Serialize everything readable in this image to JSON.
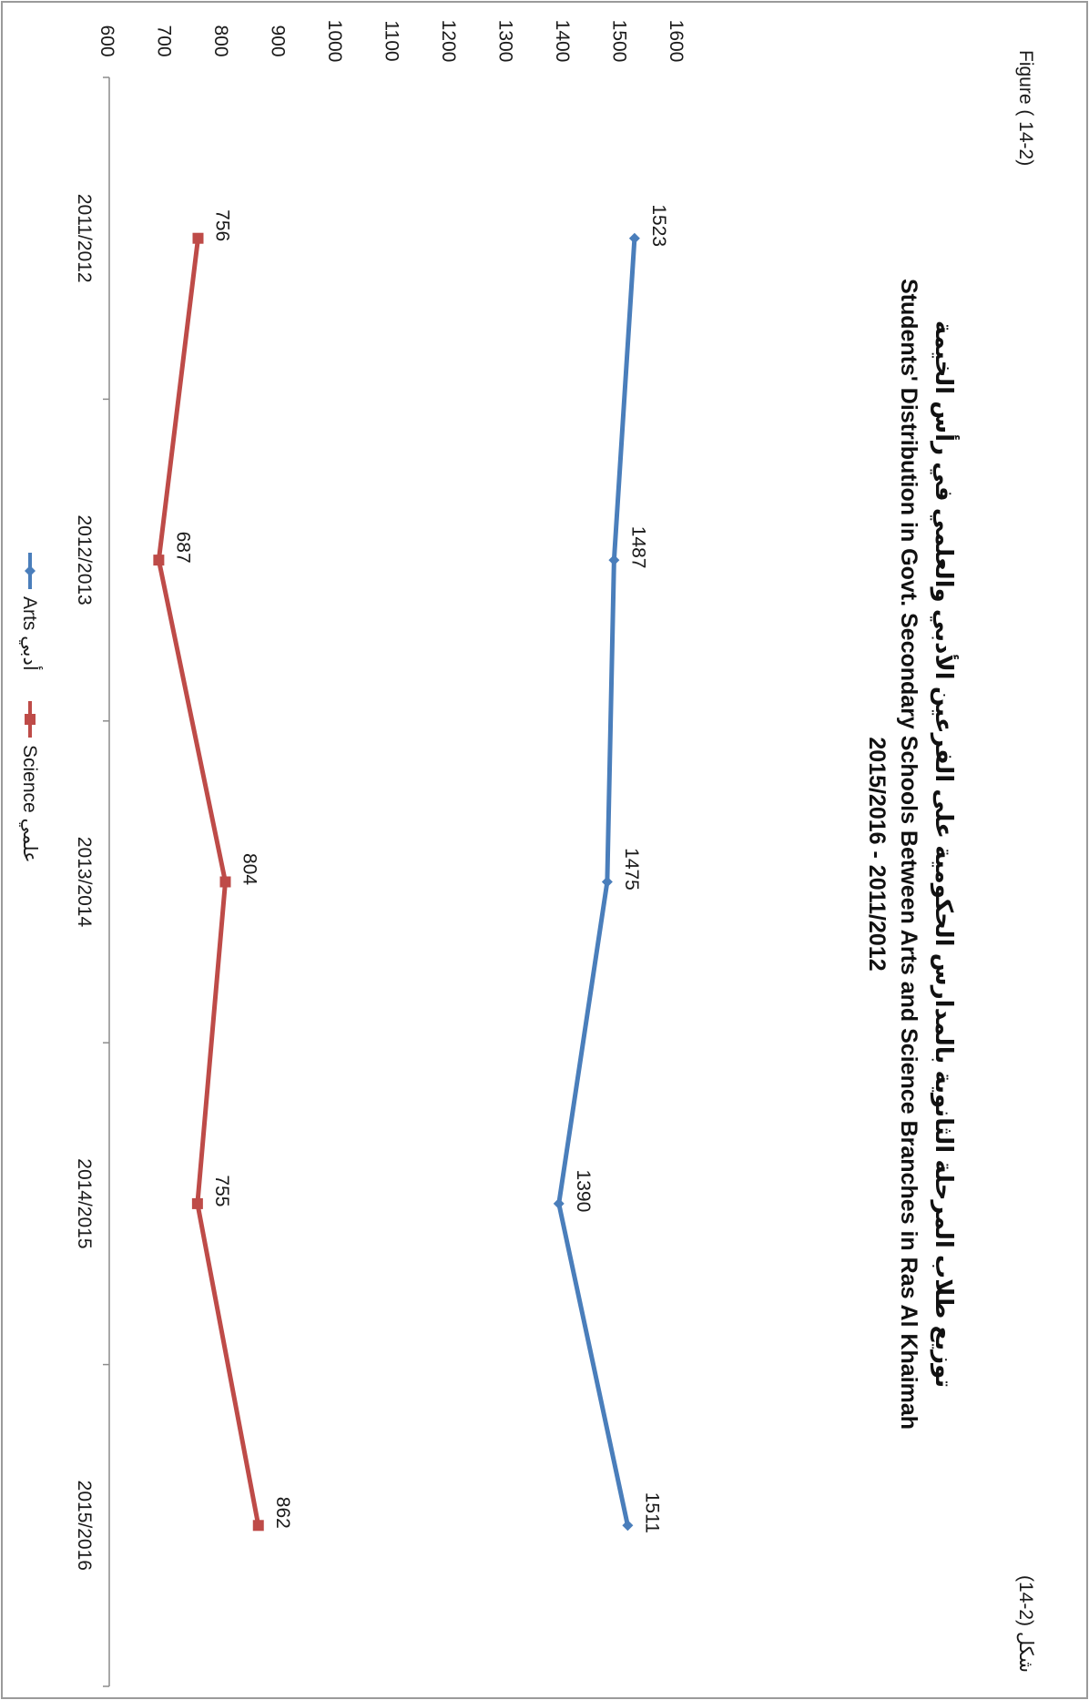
{
  "figure_label_en": "Figure ( 14-2)",
  "figure_label_ar": "شكل (2-14)",
  "chart_data": {
    "type": "line",
    "title_ar": "توزيع طلاب المرحلة الثانوية بالمدارس الحكومية على الفرعين الأدبي والعلمي في رأس الخيمة",
    "title_en": "Students' Distribution in Govt. Secondary Schools Between Arts and Science Branches in Ras Al Khaimah",
    "subtitle": "2015/2016 - 2011/2012",
    "categories": [
      "2011/2012",
      "2012/2013",
      "2013/2014",
      "2014/2015",
      "2015/2016"
    ],
    "series": [
      {
        "name": "Arts أدبي",
        "values": [
          1523,
          1487,
          1475,
          1390,
          1511
        ],
        "color": "#4a7ebb",
        "marker": "diamond"
      },
      {
        "name": "Science علمي",
        "values": [
          756,
          687,
          804,
          755,
          862
        ],
        "color": "#be4b48",
        "marker": "square"
      }
    ],
    "ylim": [
      600,
      1600
    ],
    "yticks": [
      600,
      700,
      800,
      900,
      1000,
      1100,
      1200,
      1300,
      1400,
      1500,
      1600
    ],
    "orientation": "rotated-90-clockwise",
    "legend_position": "bottom"
  }
}
